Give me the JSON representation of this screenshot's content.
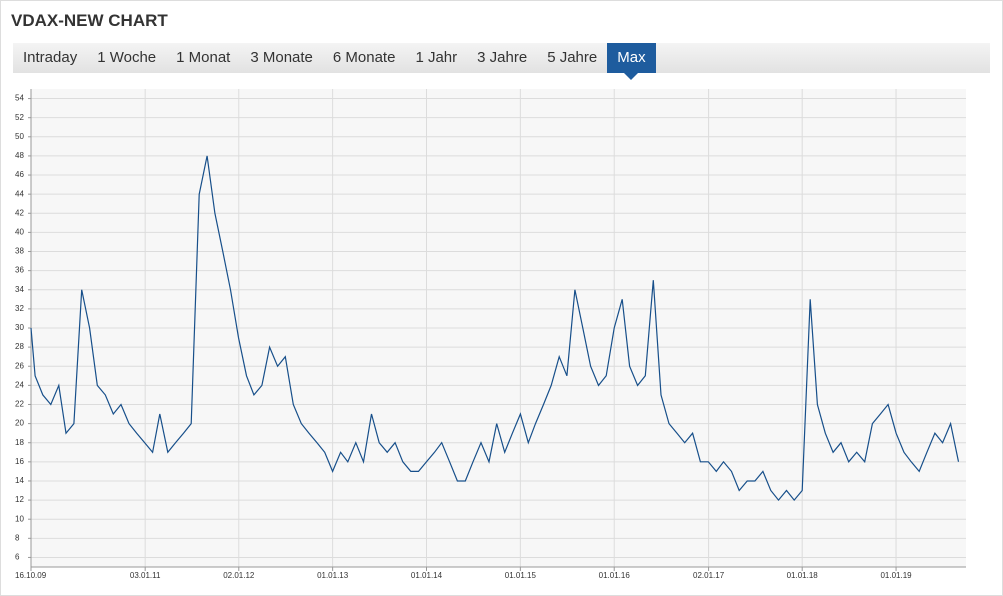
{
  "chart_data": {
    "type": "line",
    "title": "VDAX-NEW CHART",
    "x": [
      "16.10.09",
      "01.11.09",
      "01.12.09",
      "01.01.10",
      "01.02.10",
      "01.03.10",
      "01.04.10",
      "01.05.10",
      "01.06.10",
      "01.07.10",
      "01.08.10",
      "01.09.10",
      "01.10.10",
      "01.11.10",
      "01.12.10",
      "01.01.11",
      "01.02.11",
      "01.03.11",
      "01.04.11",
      "01.05.11",
      "01.06.11",
      "01.07.11",
      "01.08.11",
      "01.09.11",
      "01.10.11",
      "01.11.11",
      "01.12.11",
      "01.01.12",
      "01.02.12",
      "01.03.12",
      "01.04.12",
      "01.05.12",
      "01.06.12",
      "01.07.12",
      "01.08.12",
      "01.09.12",
      "01.10.12",
      "01.11.12",
      "01.12.12",
      "01.01.13",
      "01.02.13",
      "01.03.13",
      "01.04.13",
      "01.05.13",
      "01.06.13",
      "01.07.13",
      "01.08.13",
      "01.09.13",
      "01.10.13",
      "01.11.13",
      "01.12.13",
      "01.01.14",
      "01.02.14",
      "01.03.14",
      "01.04.14",
      "01.05.14",
      "01.06.14",
      "01.07.14",
      "01.08.14",
      "01.09.14",
      "01.10.14",
      "01.11.14",
      "01.12.14",
      "01.01.15",
      "01.02.15",
      "01.03.15",
      "01.04.15",
      "01.05.15",
      "01.06.15",
      "01.07.15",
      "01.08.15",
      "01.09.15",
      "01.10.15",
      "01.11.15",
      "01.12.15",
      "01.01.16",
      "01.02.16",
      "01.03.16",
      "01.04.16",
      "01.05.16",
      "01.06.16",
      "01.07.16",
      "01.08.16",
      "01.09.16",
      "01.10.16",
      "01.11.16",
      "01.12.16",
      "01.01.17",
      "01.02.17",
      "01.03.17",
      "01.04.17",
      "01.05.17",
      "01.06.17",
      "01.07.17",
      "01.08.17",
      "01.09.17",
      "01.10.17",
      "01.11.17",
      "01.12.17",
      "01.01.18",
      "01.02.18",
      "01.03.18",
      "01.04.18",
      "01.05.18",
      "01.06.18",
      "01.07.18",
      "01.08.18",
      "01.09.18",
      "01.10.18",
      "01.11.18",
      "01.12.18",
      "01.01.19",
      "01.02.19",
      "01.03.19",
      "01.04.19",
      "01.05.19",
      "01.06.19",
      "01.07.19",
      "01.08.19",
      "01.09.19"
    ],
    "values": [
      30,
      25,
      23,
      22,
      24,
      19,
      20,
      34,
      30,
      24,
      23,
      21,
      22,
      20,
      19,
      18,
      17,
      21,
      17,
      18,
      19,
      20,
      44,
      48,
      42,
      38,
      34,
      29,
      25,
      23,
      24,
      28,
      26,
      27,
      22,
      20,
      19,
      18,
      17,
      15,
      17,
      16,
      18,
      16,
      21,
      18,
      17,
      18,
      16,
      15,
      15,
      16,
      17,
      18,
      16,
      14,
      14,
      16,
      18,
      16,
      20,
      17,
      19,
      21,
      18,
      20,
      22,
      24,
      27,
      25,
      34,
      30,
      26,
      24,
      25,
      30,
      33,
      26,
      24,
      25,
      35,
      23,
      20,
      19,
      18,
      19,
      16,
      16,
      15,
      16,
      15,
      13,
      14,
      14,
      15,
      13,
      12,
      13,
      12,
      13,
      33,
      22,
      19,
      17,
      18,
      16,
      17,
      16,
      20,
      21,
      22,
      19,
      17,
      16,
      15,
      17,
      19,
      18,
      20,
      16
    ],
    "color": "#174f8a",
    "xlim": [
      "16.10.09",
      "30.09.19"
    ],
    "xticks": [
      "16.10.09",
      "03.01.11",
      "02.01.12",
      "01.01.13",
      "01.01.14",
      "01.01.15",
      "01.01.16",
      "02.01.17",
      "01.01.18",
      "01.01.19"
    ],
    "ylim": [
      5,
      55
    ],
    "yticks": [
      6,
      8,
      10,
      12,
      14,
      16,
      18,
      20,
      22,
      24,
      26,
      28,
      30,
      32,
      34,
      36,
      38,
      40,
      42,
      44,
      46,
      48,
      50,
      52,
      54
    ],
    "grid": true
  },
  "tabs": [
    "Intraday",
    "1 Woche",
    "1 Monat",
    "3 Monate",
    "6 Monate",
    "1 Jahr",
    "3 Jahre",
    "5 Jahre",
    "Max"
  ],
  "active_tab": 8
}
